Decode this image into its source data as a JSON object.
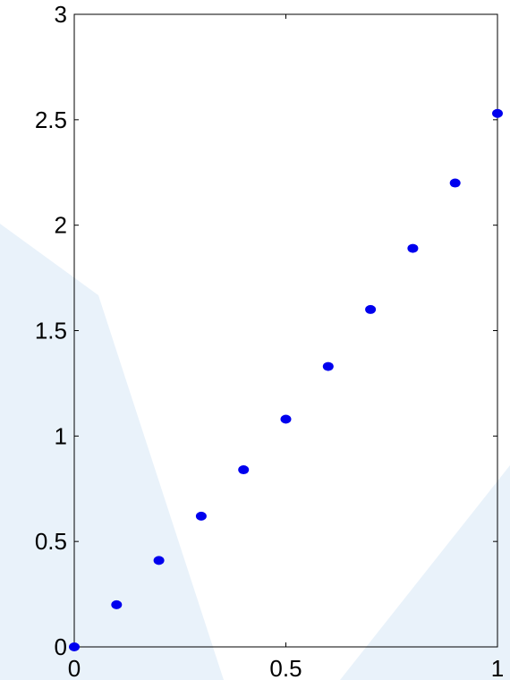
{
  "chart_data": {
    "type": "scatter",
    "title": "",
    "xlabel": "",
    "ylabel": "",
    "xlim": [
      0,
      1
    ],
    "ylim": [
      0,
      3
    ],
    "grid": false,
    "marker_color": "#0000ee",
    "x_ticks": [
      {
        "value": 0,
        "label": "0"
      },
      {
        "value": 0.5,
        "label": "0.5"
      },
      {
        "value": 1,
        "label": "1"
      }
    ],
    "y_ticks": [
      {
        "value": 0,
        "label": "0"
      },
      {
        "value": 0.5,
        "label": "0.5"
      },
      {
        "value": 1,
        "label": "1"
      },
      {
        "value": 1.5,
        "label": "1.5"
      },
      {
        "value": 2,
        "label": "2"
      },
      {
        "value": 2.5,
        "label": "2.5"
      },
      {
        "value": 3,
        "label": "3"
      }
    ],
    "series": [
      {
        "x": [
          0,
          0.1,
          0.2,
          0.3,
          0.4,
          0.5,
          0.6,
          0.7,
          0.8,
          0.9,
          1.0
        ],
        "y": [
          0,
          0.2,
          0.41,
          0.62,
          0.84,
          1.08,
          1.33,
          1.6,
          1.89,
          2.2,
          2.53
        ]
      }
    ]
  }
}
